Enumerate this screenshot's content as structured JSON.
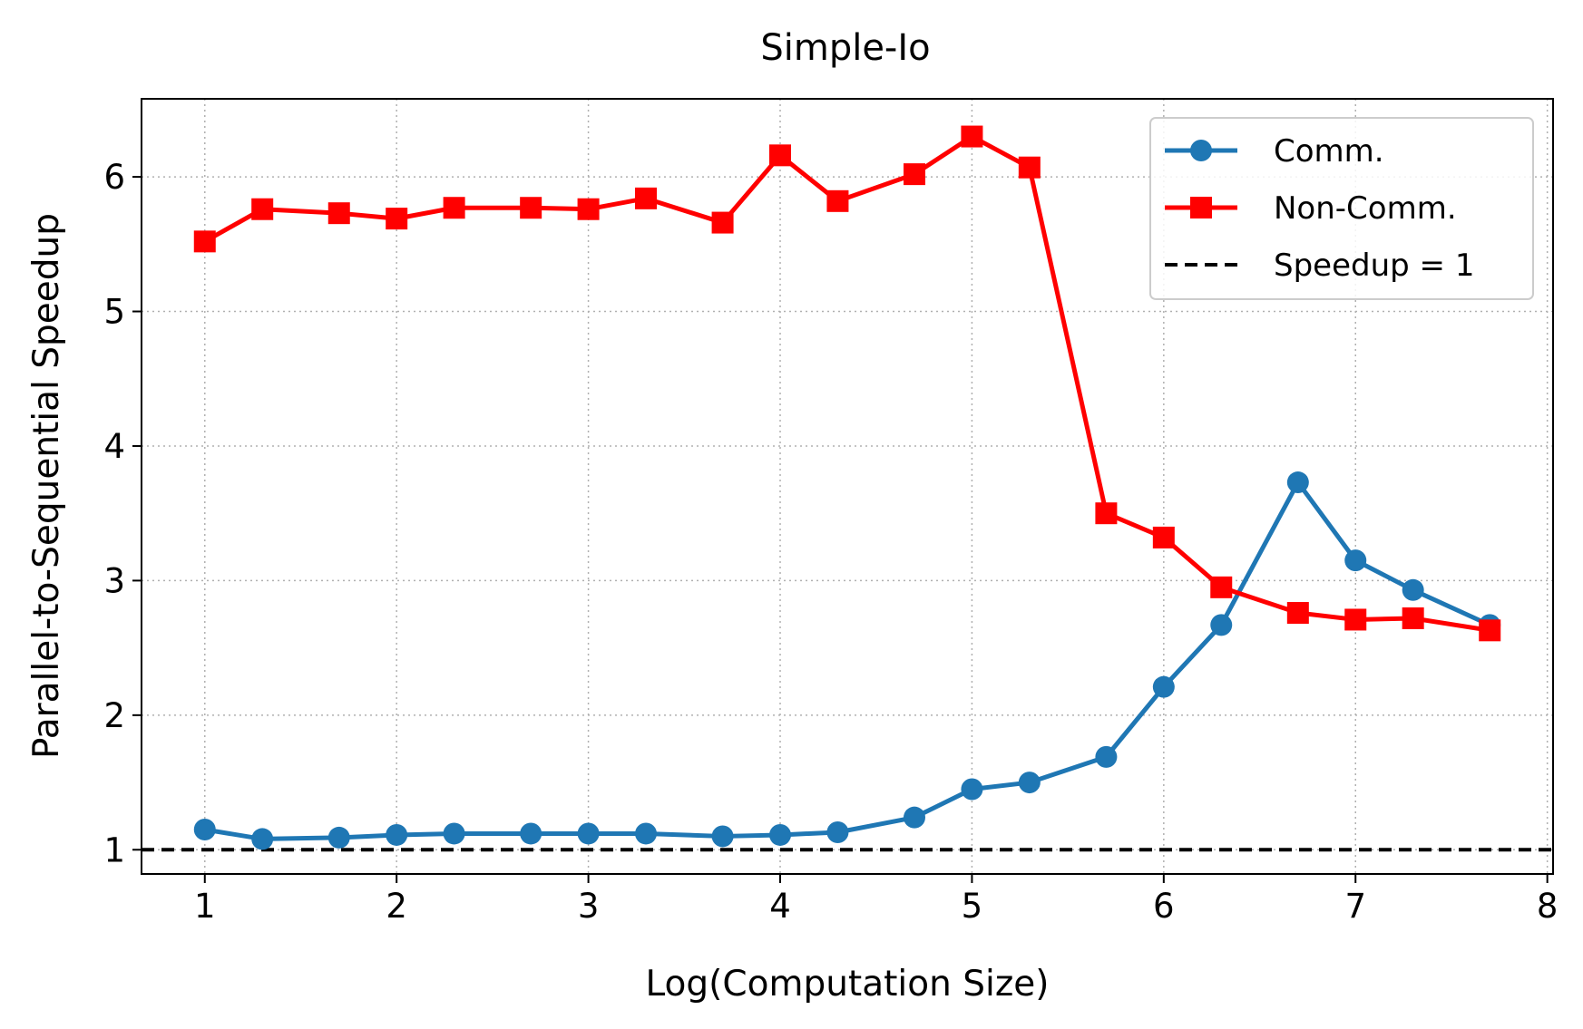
{
  "chart_data": {
    "type": "line",
    "title": "Simple-Io",
    "xlabel": "Log(Computation Size)",
    "ylabel": "Parallel-to-Sequential Speedup",
    "xlim": [
      0.67,
      8.03
    ],
    "ylim": [
      0.82,
      6.58
    ],
    "xticks": [
      1,
      2,
      3,
      4,
      5,
      6,
      7,
      8
    ],
    "yticks": [
      1,
      2,
      3,
      4,
      5,
      6
    ],
    "grid": true,
    "legend_position": "top-right",
    "x": [
      1.0,
      1.3,
      1.7,
      2.0,
      2.3,
      2.7,
      3.0,
      3.3,
      3.7,
      4.0,
      4.3,
      4.7,
      5.0,
      5.3,
      5.7,
      6.0,
      6.3,
      6.7,
      7.0,
      7.3,
      7.7
    ],
    "series": [
      {
        "name": "Comm.",
        "color": "#1f77b4",
        "marker": "circle",
        "values": [
          1.15,
          1.08,
          1.09,
          1.11,
          1.12,
          1.12,
          1.12,
          1.12,
          1.1,
          1.11,
          1.13,
          1.24,
          1.45,
          1.5,
          1.69,
          2.21,
          2.67,
          3.73,
          3.15,
          2.93,
          2.67
        ]
      },
      {
        "name": "Non-Comm.",
        "color": "#ff0000",
        "marker": "square",
        "values": [
          5.52,
          5.76,
          5.73,
          5.69,
          5.77,
          5.77,
          5.76,
          5.84,
          5.66,
          6.16,
          5.82,
          6.02,
          6.3,
          6.07,
          3.5,
          3.32,
          2.95,
          2.76,
          2.71,
          2.72,
          2.63
        ]
      }
    ],
    "reference_line": {
      "name": "Speedup = 1",
      "y": 1,
      "color": "#000000",
      "style": "dashed"
    }
  }
}
